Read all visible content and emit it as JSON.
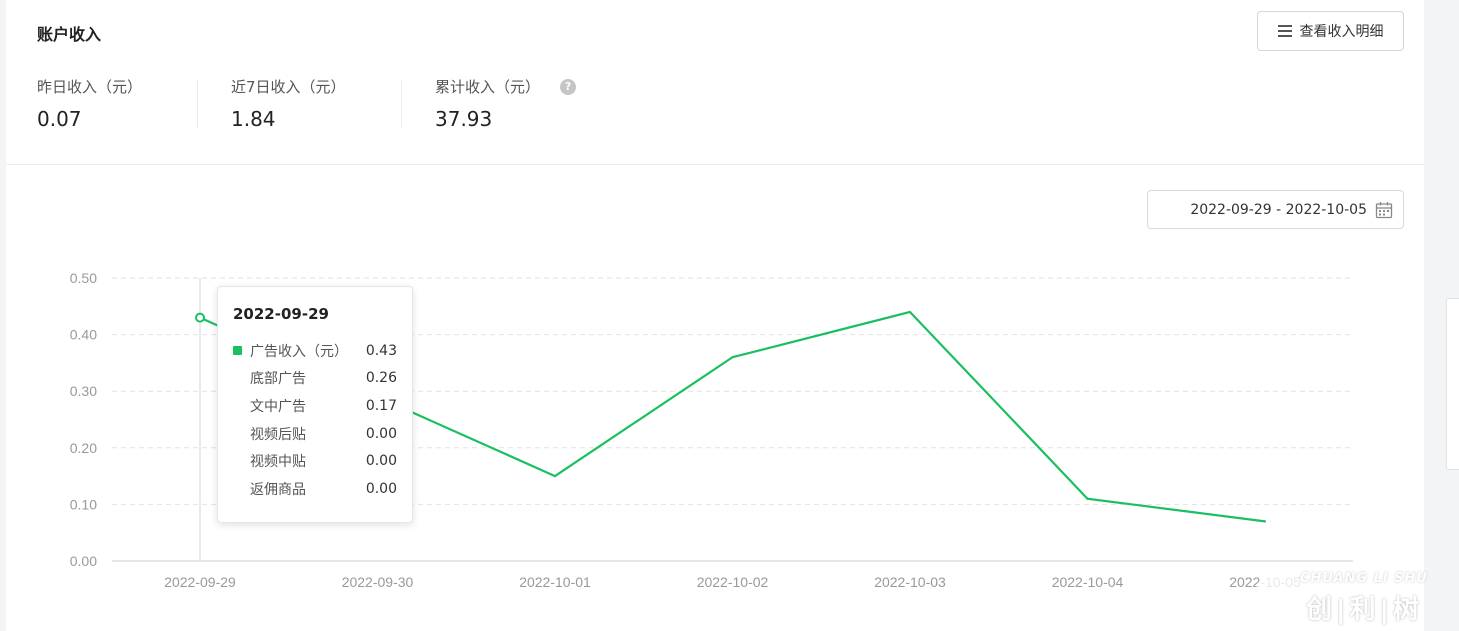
{
  "header": {
    "title": "账户收入",
    "detail_button": "查看收入明细"
  },
  "stats": [
    {
      "label": "昨日收入（元）",
      "value": "0.07"
    },
    {
      "label": "近7日收入（元）",
      "value": "1.84"
    },
    {
      "label": "累计收入（元）",
      "value": "37.93"
    }
  ],
  "date_range": "2022-09-29 - 2022-10-05",
  "icons": {
    "menu": "menu-icon",
    "help": "help-icon",
    "calendar": "calendar-icon"
  },
  "colors": {
    "line": "#1bbf60",
    "grid": "#e2e2e2",
    "axis_text": "#999999"
  },
  "chart_data": {
    "type": "line",
    "categories": [
      "2022-09-29",
      "2022-09-30",
      "2022-10-01",
      "2022-10-02",
      "2022-10-03",
      "2022-10-04",
      "2022-10-05"
    ],
    "series": [
      {
        "name": "广告收入（元）",
        "values": [
          0.43,
          0.29,
          0.15,
          0.36,
          0.44,
          0.11,
          0.07
        ]
      }
    ],
    "yticks": [
      "0.00",
      "0.10",
      "0.20",
      "0.30",
      "0.40",
      "0.50"
    ],
    "ylim": [
      0,
      0.5
    ],
    "grid": true,
    "tooltip": {
      "date": "2022-09-29",
      "rows": [
        {
          "label": "广告收入（元）",
          "value": "0.43",
          "marker": true
        },
        {
          "label": "底部广告",
          "value": "0.26",
          "marker": false
        },
        {
          "label": "文中广告",
          "value": "0.17",
          "marker": false
        },
        {
          "label": "视频后贴",
          "value": "0.00",
          "marker": false
        },
        {
          "label": "视频中贴",
          "value": "0.00",
          "marker": false
        },
        {
          "label": "返佣商品",
          "value": "0.00",
          "marker": false
        }
      ]
    }
  },
  "watermark": {
    "en": "CHUANG LI SHU",
    "cn": "创|利|树"
  }
}
